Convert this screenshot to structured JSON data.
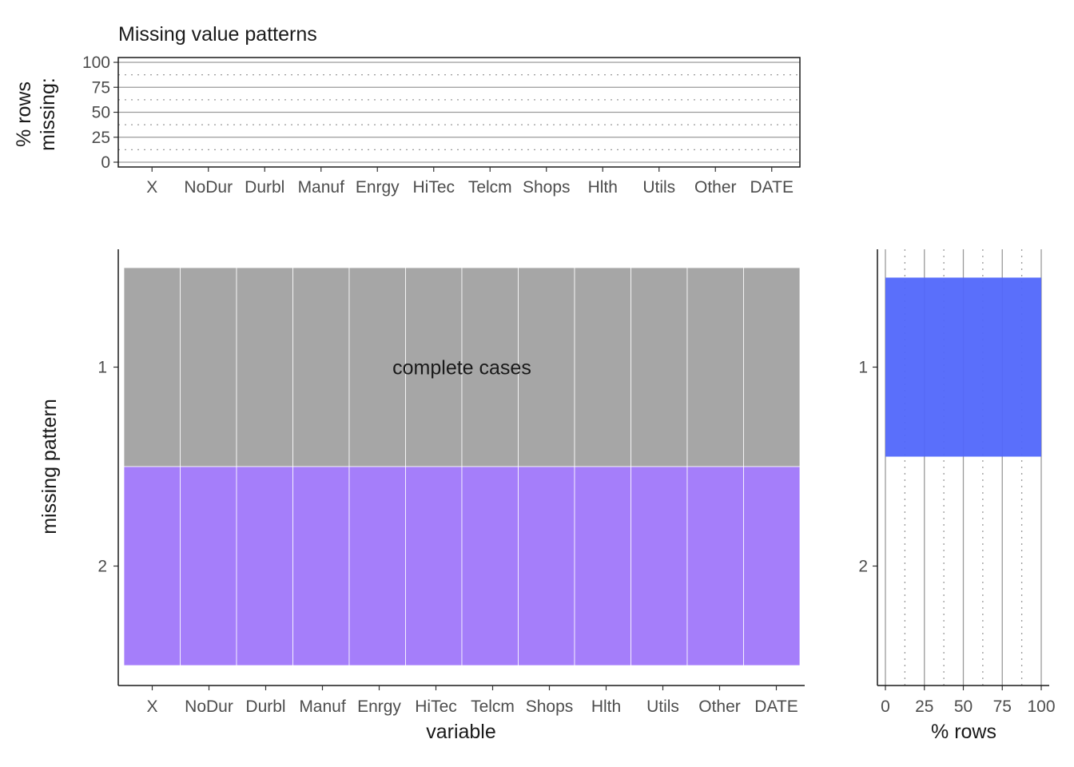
{
  "chart_data": [
    {
      "type": "bar",
      "title": "Missing value patterns",
      "ylabel": "% rows\nmissing:",
      "xlabel": "",
      "categories": [
        "X",
        "NoDur",
        "Durbl",
        "Manuf",
        "Enrgy",
        "HiTec",
        "Telcm",
        "Shops",
        "Hlth",
        "Utils",
        "Other",
        "DATE"
      ],
      "values": [
        0,
        0,
        0,
        0,
        0,
        0,
        0,
        0,
        0,
        0,
        0,
        0
      ],
      "ylim": [
        0,
        100
      ],
      "yticks": [
        0,
        25,
        50,
        75,
        100
      ],
      "grid": true
    },
    {
      "type": "heatmap",
      "xlabel": "variable",
      "ylabel": "missing pattern",
      "categories": [
        "X",
        "NoDur",
        "Durbl",
        "Manuf",
        "Enrgy",
        "HiTec",
        "Telcm",
        "Shops",
        "Hlth",
        "Utils",
        "Other",
        "DATE"
      ],
      "patterns": [
        "1",
        "2"
      ],
      "rows": [
        {
          "pattern": "1",
          "missing": [
            false,
            false,
            false,
            false,
            false,
            false,
            false,
            false,
            false,
            false,
            false,
            false
          ],
          "annotation": "complete cases",
          "color": "#a6a6a6"
        },
        {
          "pattern": "2",
          "missing": [
            false,
            false,
            false,
            false,
            false,
            false,
            false,
            false,
            false,
            false,
            false,
            false
          ],
          "color": "#a57efa"
        }
      ]
    },
    {
      "type": "bar",
      "orientation": "horizontal",
      "xlabel": "% rows",
      "ylabel": "",
      "categories": [
        "1",
        "2"
      ],
      "values": [
        100,
        0
      ],
      "xlim": [
        0,
        100
      ],
      "xticks": [
        0,
        25,
        50,
        75,
        100
      ],
      "color": "#5167fb",
      "grid": true
    }
  ]
}
